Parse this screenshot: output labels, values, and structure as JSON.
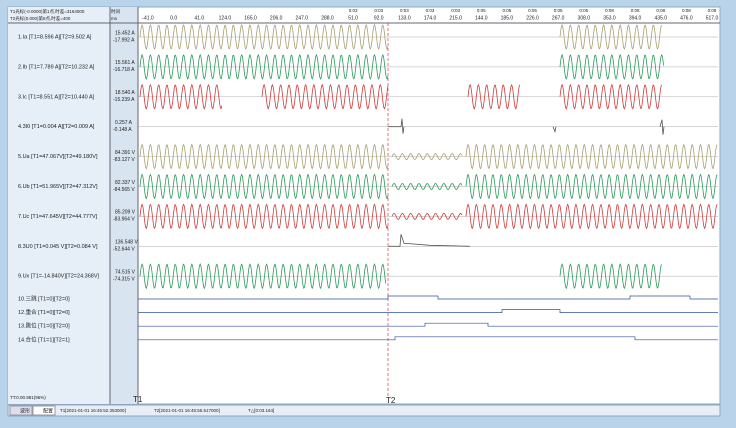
{
  "header": {
    "line1": "T1光标(-0.0000)第1点,时差=3164000",
    "line2": "T2光标(0.000)第8点,时差=400",
    "unit1": "时间",
    "unit2": "ms"
  },
  "time_axis": {
    "ticks": [
      {
        "top": null,
        "bottom": "-41.0"
      },
      {
        "top": null,
        "bottom": "0.0"
      },
      {
        "top": null,
        "bottom": "41.0"
      },
      {
        "top": null,
        "bottom": "124.0"
      },
      {
        "top": null,
        "bottom": "165.0"
      },
      {
        "top": null,
        "bottom": "206.0"
      },
      {
        "top": null,
        "bottom": "247.0"
      },
      {
        "top": null,
        "bottom": "288.0"
      },
      {
        "top": "0:03",
        "bottom": "51.0"
      },
      {
        "top": "0:03",
        "bottom": "92.0"
      },
      {
        "top": "0:03",
        "bottom": "133.0"
      },
      {
        "top": "0:03",
        "bottom": "174.0"
      },
      {
        "top": "0:03",
        "bottom": "215.0"
      },
      {
        "top": "0:05",
        "bottom": "144.0"
      },
      {
        "top": "0:05",
        "bottom": "185.0"
      },
      {
        "top": "0:05",
        "bottom": "226.0"
      },
      {
        "top": "0:05",
        "bottom": "267.0"
      },
      {
        "top": "0:05",
        "bottom": "308.0"
      },
      {
        "top": "0:08",
        "bottom": "353.0"
      },
      {
        "top": "0:08",
        "bottom": "394.0"
      },
      {
        "top": "0:08",
        "bottom": "435.0"
      },
      {
        "top": "0:08",
        "bottom": "476.0"
      },
      {
        "top": "0:08",
        "bottom": "517.0"
      }
    ]
  },
  "channels": [
    {
      "label": "1.Ia [T1=8.596 A][T2=9.502 A]",
      "max": "15.452 A",
      "min": "-17.992 A"
    },
    {
      "label": "2.Ib [T1=7.789 A][T2=10.232 A]",
      "max": "15.561 A",
      "min": "-16.718 A"
    },
    {
      "label": "3.Ic [T1=8.551 A][T2=10.440 A]",
      "max": "18.540 A",
      "min": "-15.239 A"
    },
    {
      "label": "4.3I0 [T1=0.004 A][T2=0.009 A]",
      "max": "0.257 A",
      "min": "-0.148 A"
    },
    {
      "label": "5.Ua [T1=47.067V][T2=49.180V]",
      "max": "84.391 V",
      "min": "-83.127 V"
    },
    {
      "label": "6.Ub [T1=51.965V][T2=47.312V]",
      "max": "82.337 V",
      "min": "-84.565 V"
    },
    {
      "label": "7.Uc [T1=47.645V][T2=44.777V]",
      "max": "85.209 V",
      "min": "-83.964 V"
    },
    {
      "label": "8.3U0 [T1=0.045 V][T2=0.084 V]",
      "max": "136.548 V",
      "min": "-52.644 V"
    },
    {
      "label": "9.Ux [T1=-14.840V][T2=24.368V]",
      "max": "74.515 V",
      "min": "-74.315 V"
    }
  ],
  "digital": [
    {
      "label": "10.三跳 [T1=0][T2=0]"
    },
    {
      "label": "12.重合 [T1=0][T2=0]"
    },
    {
      "label": "13.跳位 [T1=0][T2=0]"
    },
    {
      "label": "14.合位 [T1=1][T2=1]"
    }
  ],
  "footer": {
    "ratio": "TT:0.00.981(96%)",
    "cursor1": "T1",
    "cursor2": "T2"
  },
  "statusbar": {
    "tab1": "波形",
    "tab2": "配置",
    "t1": "T1[2021-01-01 16:45:52.353000]",
    "t2": "T2[2021-01-01 16:45:55.517000]",
    "dt": "T△[0:03.164]"
  }
}
